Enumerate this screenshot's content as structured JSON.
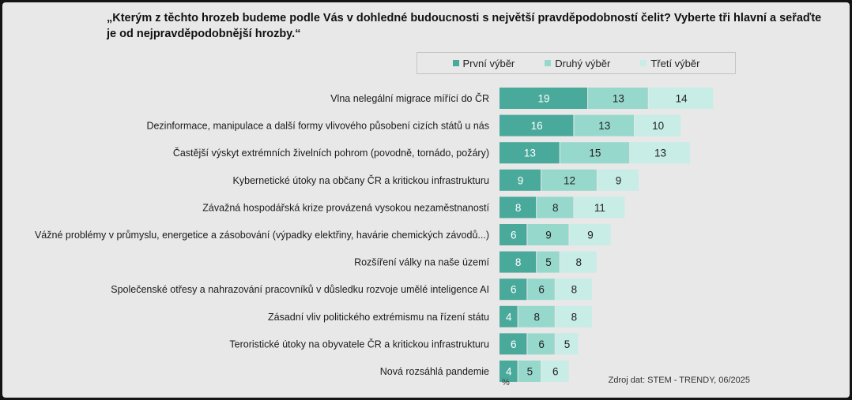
{
  "title": "„Kterým z těchto hrozeb budeme podle Vás v dohledné budoucnosti s největší pravděpodobností čelit? Vyberte tři hlavní a seřaďte je od nejpravděpodobnější hrozby.“",
  "source": "Zdroj dat: STEM - TRENDY, 06/2025",
  "colors": {
    "series1": "#49a99b",
    "series2": "#97d8cc",
    "series3": "#c8ece6",
    "background": "#e8e8e8",
    "label_text": "#1a1a1a",
    "bar_label_light": "#ffffff",
    "bar_label_dark": "#222222"
  },
  "chart_data": {
    "type": "bar",
    "orientation": "horizontal",
    "stacked": true,
    "legend_position": "top",
    "xlabel": "%",
    "categories": [
      "Vlna nelegální migrace mířící do ČR",
      "Dezinformace, manipulace a další formy vlivového působení cizích států u nás",
      "Častější výskyt extrémních živelních pohrom (povodně, tornádo, požáry)",
      "Kybernetické útoky na občany ČR a kritickou infrastrukturu",
      "Závažná hospodářská krize provázená vysokou nezaměstnaností",
      "Vážné problémy v průmyslu, energetice a zásobování (výpadky elektřiny, havárie chemických závodů...)",
      "Rozšíření války na naše území",
      "Společenské otřesy a nahrazování pracovníků v důsledku rozvoje umělé inteligence AI",
      "Zásadní vliv politického extrémismu na řízení státu",
      "Teroristické útoky na obyvatele ČR a kritickou infrastrukturu",
      "Nová rozsáhlá pandemie"
    ],
    "series": [
      {
        "name": "První výběr",
        "values": [
          19,
          16,
          13,
          9,
          8,
          6,
          8,
          6,
          4,
          6,
          4
        ]
      },
      {
        "name": "Druhý výběr",
        "values": [
          13,
          13,
          15,
          12,
          8,
          9,
          5,
          6,
          8,
          6,
          5
        ]
      },
      {
        "name": "Třetí výběr",
        "values": [
          14,
          10,
          13,
          9,
          11,
          9,
          8,
          8,
          8,
          5,
          6
        ]
      }
    ]
  }
}
